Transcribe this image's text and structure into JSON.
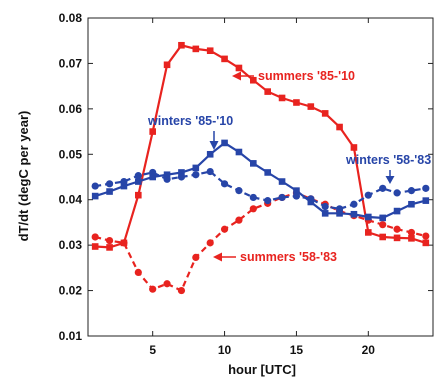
{
  "chart_data": {
    "type": "line",
    "xlabel": "hour [UTC]",
    "ylabel": "dT/dt (degC per year)",
    "xlim": [
      0.5,
      24.5
    ],
    "ylim": [
      0.01,
      0.08
    ],
    "xticks": [
      5,
      10,
      15,
      20
    ],
    "yticks": [
      0.01,
      0.02,
      0.03,
      0.04,
      0.05,
      0.06,
      0.07,
      0.08
    ],
    "xtick_labels": [
      "5",
      "10",
      "15",
      "20"
    ],
    "ytick_labels": [
      "0.01",
      "0.02",
      "0.03",
      "0.04",
      "0.05",
      "0.06",
      "0.07",
      "0.08"
    ],
    "grid": false,
    "x": [
      1,
      2,
      3,
      4,
      5,
      6,
      7,
      8,
      9,
      10,
      11,
      12,
      13,
      14,
      15,
      16,
      17,
      18,
      19,
      20,
      21,
      22,
      23,
      24
    ],
    "series": [
      {
        "name": "summers '85-'10",
        "color": "#e8231f",
        "dash": "solid",
        "marker": "square",
        "values": [
          0.0297,
          0.0295,
          0.0305,
          0.041,
          0.055,
          0.0697,
          0.074,
          0.0732,
          0.0728,
          0.071,
          0.069,
          0.0663,
          0.0638,
          0.0624,
          0.0614,
          0.0605,
          0.059,
          0.056,
          0.0515,
          0.0328,
          0.0318,
          0.0316,
          0.0315,
          0.0305
        ]
      },
      {
        "name": "summers '58-'83",
        "color": "#e8231f",
        "dash": "dashed",
        "marker": "circle",
        "values": [
          0.0318,
          0.031,
          0.0305,
          0.024,
          0.0203,
          0.0215,
          0.02,
          0.0273,
          0.0305,
          0.0335,
          0.0355,
          0.038,
          0.0392,
          0.0405,
          0.0415,
          0.0402,
          0.039,
          0.0375,
          0.0365,
          0.0355,
          0.0345,
          0.0335,
          0.0328,
          0.032
        ]
      },
      {
        "name": "winters '85-'10",
        "color": "#2745a8",
        "dash": "solid",
        "marker": "square",
        "values": [
          0.0408,
          0.0418,
          0.043,
          0.044,
          0.045,
          0.0455,
          0.046,
          0.047,
          0.05,
          0.0525,
          0.0505,
          0.048,
          0.046,
          0.044,
          0.042,
          0.0395,
          0.037,
          0.037,
          0.0368,
          0.0362,
          0.036,
          0.0375,
          0.039,
          0.0398
        ]
      },
      {
        "name": "winters '58-'83",
        "color": "#2745a8",
        "dash": "dashed",
        "marker": "circle",
        "values": [
          0.043,
          0.0435,
          0.044,
          0.0453,
          0.046,
          0.0445,
          0.045,
          0.0455,
          0.0462,
          0.0435,
          0.042,
          0.0405,
          0.0398,
          0.0405,
          0.0408,
          0.0402,
          0.0385,
          0.038,
          0.039,
          0.041,
          0.0425,
          0.0415,
          0.042,
          0.0425
        ]
      }
    ],
    "annotations": [
      {
        "text": "summers '85-'10",
        "color": "#e8231f",
        "arrow_to": [
          11.5,
          0.0708
        ]
      },
      {
        "text": "winters '85-'10",
        "color": "#2745a8",
        "arrow_to": [
          9.6,
          0.0493
        ]
      },
      {
        "text": "winters '58-'83",
        "color": "#2745a8",
        "arrow_to": [
          22.2,
          0.0433
        ]
      },
      {
        "text": "summers '58-'83",
        "color": "#e8231f",
        "arrow_to": [
          9.2,
          0.0275
        ]
      }
    ]
  }
}
